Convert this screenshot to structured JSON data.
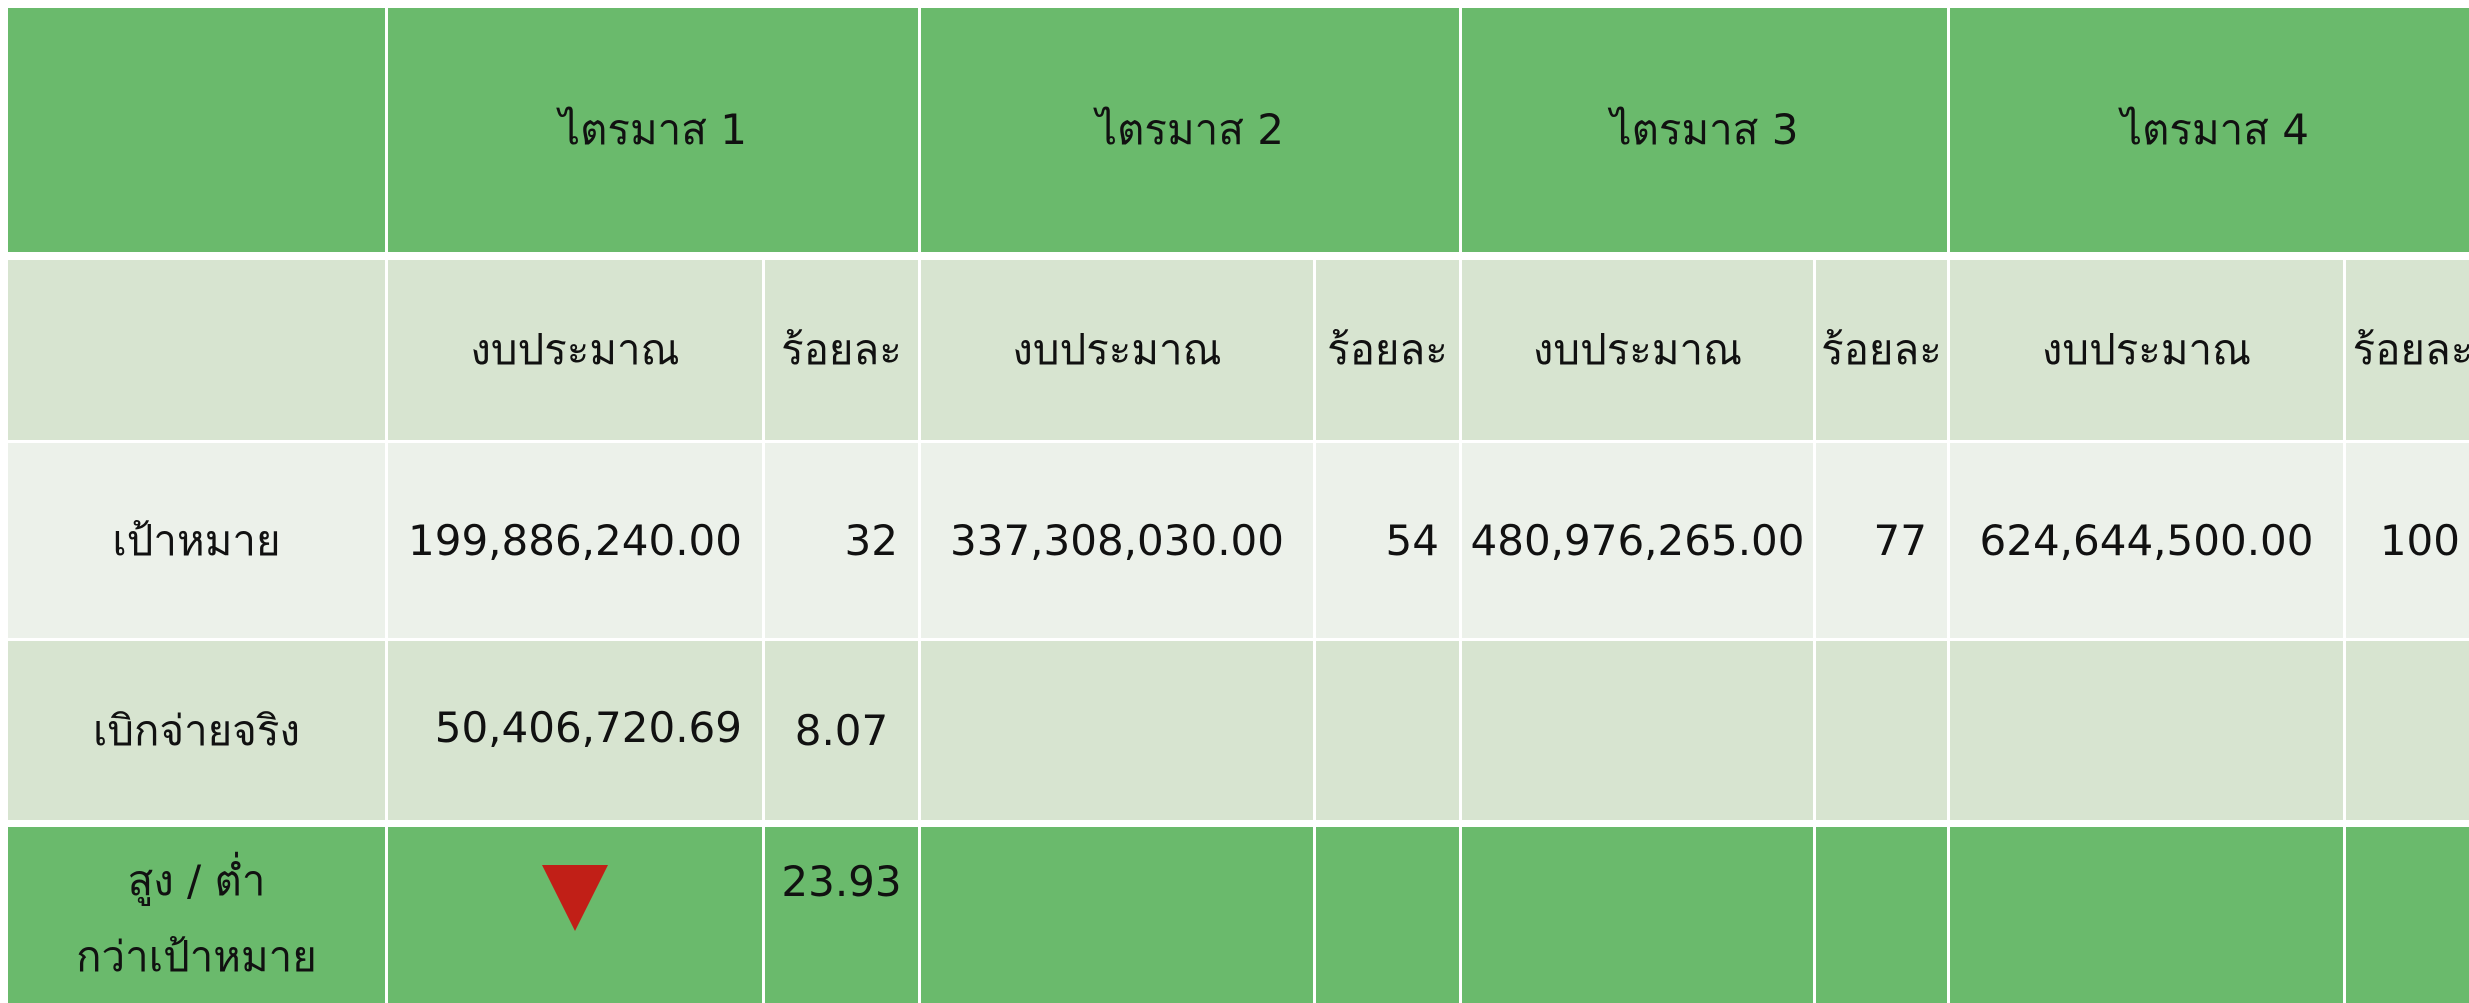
{
  "header": {
    "quarters": [
      "ไตรมาส 1",
      "ไตรมาส 2",
      "ไตรมาส 3",
      "ไตรมาส 4"
    ]
  },
  "subheader": [
    "งบประมาณ",
    "ร้อยละ",
    "งบประมาณ",
    "ร้อยละ",
    "งบประมาณ",
    "ร้อยละ",
    "งบประมาณ",
    "ร้อยละ"
  ],
  "rows": [
    {
      "label": "เป้าหมาย",
      "cells": [
        "199,886,240.00",
        "32",
        "337,308,030.00",
        "54",
        "480,976,265.00",
        "77",
        "624,644,500.00",
        "100"
      ]
    },
    {
      "label": "เบิกจ่ายจริง",
      "cells": [
        "50,406,720.69",
        "8.07"
      ]
    },
    {
      "label_lines": [
        "สูง / ต่ำ",
        "กว่าเป้าหมาย"
      ],
      "percent": "23.93"
    }
  ]
}
